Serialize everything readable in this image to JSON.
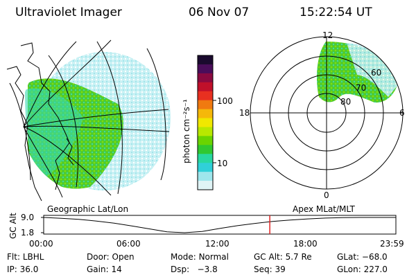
{
  "header": {
    "instrument": "Ultraviolet Imager",
    "date": "06 Nov 07",
    "time": "15:22:54 UT"
  },
  "colorbar": {
    "unit_label": "photon cm⁻²s⁻¹",
    "ticks": [
      "100",
      "10"
    ],
    "colors": [
      "#1a0a2e",
      "#4a0d5a",
      "#8a0a40",
      "#c0102a",
      "#e83020",
      "#f07a10",
      "#f5b80a",
      "#f0e800",
      "#b8e800",
      "#6ad400",
      "#30c830",
      "#28d8a0",
      "#30d0d8",
      "#9ee6ec",
      "#e0f4f6"
    ]
  },
  "polar": {
    "rings": [
      "80",
      "70",
      "60"
    ],
    "mlt": {
      "top": "12",
      "left": "18",
      "right": "6",
      "bottom": "0"
    }
  },
  "timeline": {
    "left_label": "Geographic Lat/Lon",
    "right_label": "Apex MLat/MLT",
    "y_axis_label": "GC Alt",
    "y_ticks": [
      "9.0",
      "1.8"
    ],
    "x_ticks": [
      "00:00",
      "06:00",
      "12:00",
      "18:00",
      "23:59"
    ],
    "alt_samples": [
      9.0,
      8.6,
      8.1,
      7.3,
      6.3,
      5.0,
      3.6,
      2.2,
      1.8,
      2.4,
      3.8,
      5.1,
      6.2,
      7.1,
      7.8,
      8.3,
      8.7,
      8.9,
      9.0,
      9.0,
      9.0
    ],
    "marker_fraction": 0.642,
    "marker_color": "#e02020"
  },
  "info_rows": [
    [
      {
        "key": "Flt:",
        "value": "LBHL"
      },
      {
        "key": "Door:",
        "value": "Open"
      },
      {
        "key": "Mode:",
        "value": "Normal"
      },
      {
        "key": "GC Alt:",
        "value": "5.7 Re"
      },
      {
        "key": "GLat:",
        "value": "−68.0"
      }
    ],
    [
      {
        "key": "IP:",
        "value": "36.0"
      },
      {
        "key": "Gain:",
        "value": "14"
      },
      {
        "key": "Dsp:",
        "value": "  −3.8"
      },
      {
        "key": "Seq:",
        "value": "39"
      },
      {
        "key": "GLon:",
        "value": "227.0"
      }
    ]
  ]
}
